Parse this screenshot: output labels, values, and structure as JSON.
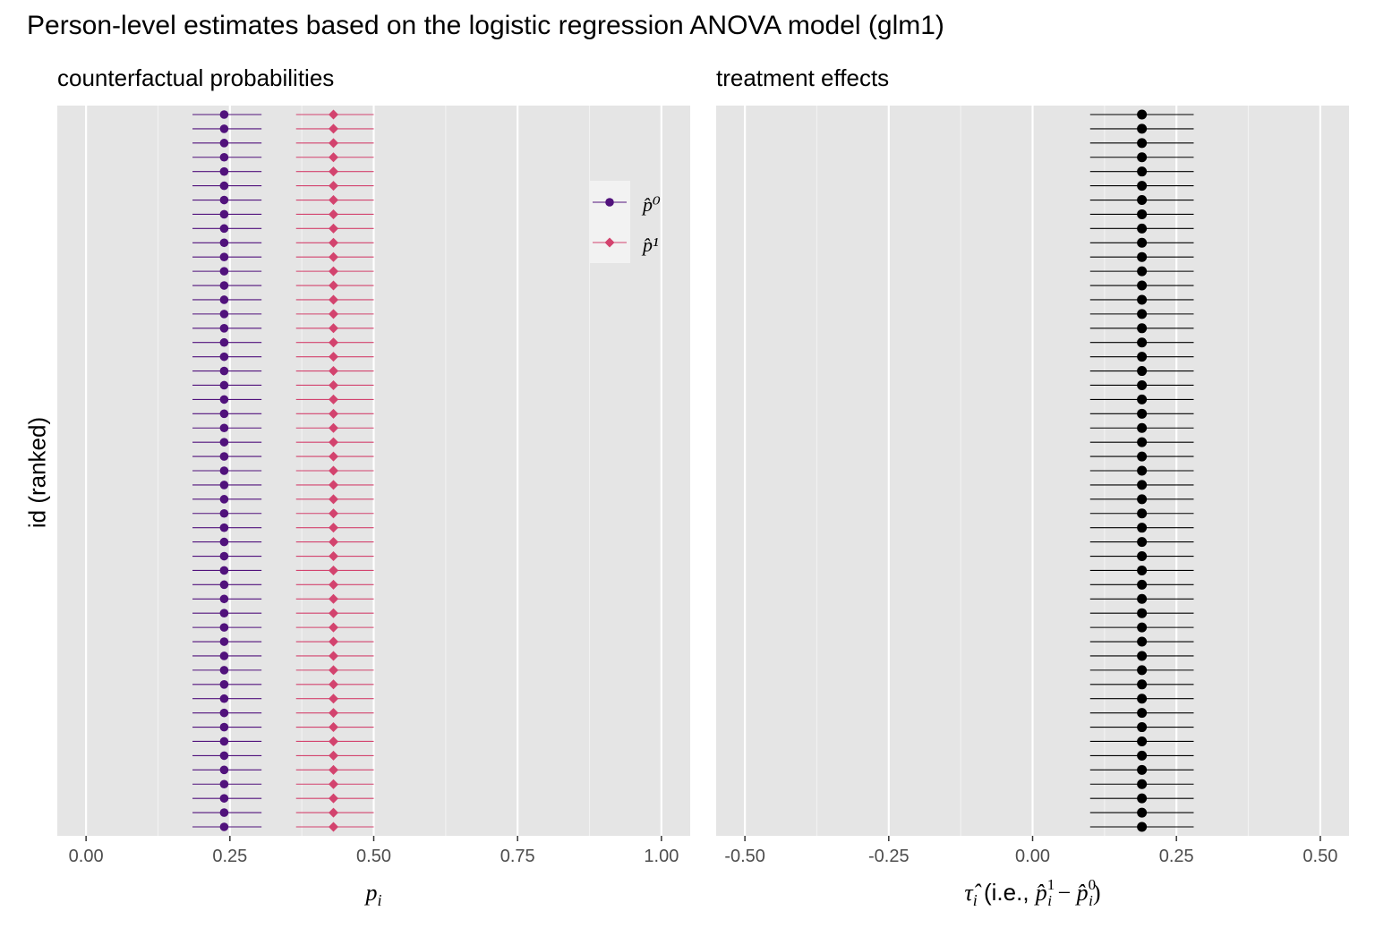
{
  "title": "Person-level estimates based on the logistic regression ANOVA model (glm1)",
  "ylabel": "id (ranked)",
  "chart_data": [
    {
      "type": "scatter",
      "subtitle": "counterfactual probabilities",
      "xlabel": "p_i",
      "xlim": [
        -0.05,
        1.05
      ],
      "ticks": [
        0.0,
        0.25,
        0.5,
        0.75,
        1.0
      ],
      "tick_labels": [
        "0.00",
        "0.25",
        "0.50",
        "0.75",
        "1.00"
      ],
      "grid": true,
      "legend_placement": "top-right",
      "n_ids": 51,
      "series": [
        {
          "name": "p̂⁰",
          "estimate": 0.24,
          "lower": 0.185,
          "upper": 0.305,
          "color": "#51127c",
          "shape": "circle"
        },
        {
          "name": "p̂¹",
          "estimate": 0.43,
          "lower": 0.365,
          "upper": 0.5,
          "color": "#d3436e",
          "shape": "diamond"
        }
      ]
    },
    {
      "type": "scatter",
      "subtitle": "treatment effects",
      "xlabel": "τ̂_i (i.e., p̂_i¹ − p̂_i⁰)",
      "xlim": [
        -0.55,
        0.55
      ],
      "ticks": [
        -0.5,
        -0.25,
        0.0,
        0.25,
        0.5
      ],
      "tick_labels": [
        "-0.50",
        "-0.25",
        "0.00",
        "0.25",
        "0.50"
      ],
      "grid": true,
      "n_ids": 51,
      "series": [
        {
          "estimate": 0.19,
          "lower": 0.1,
          "upper": 0.28,
          "color": "#000000",
          "shape": "circle"
        }
      ]
    }
  ]
}
